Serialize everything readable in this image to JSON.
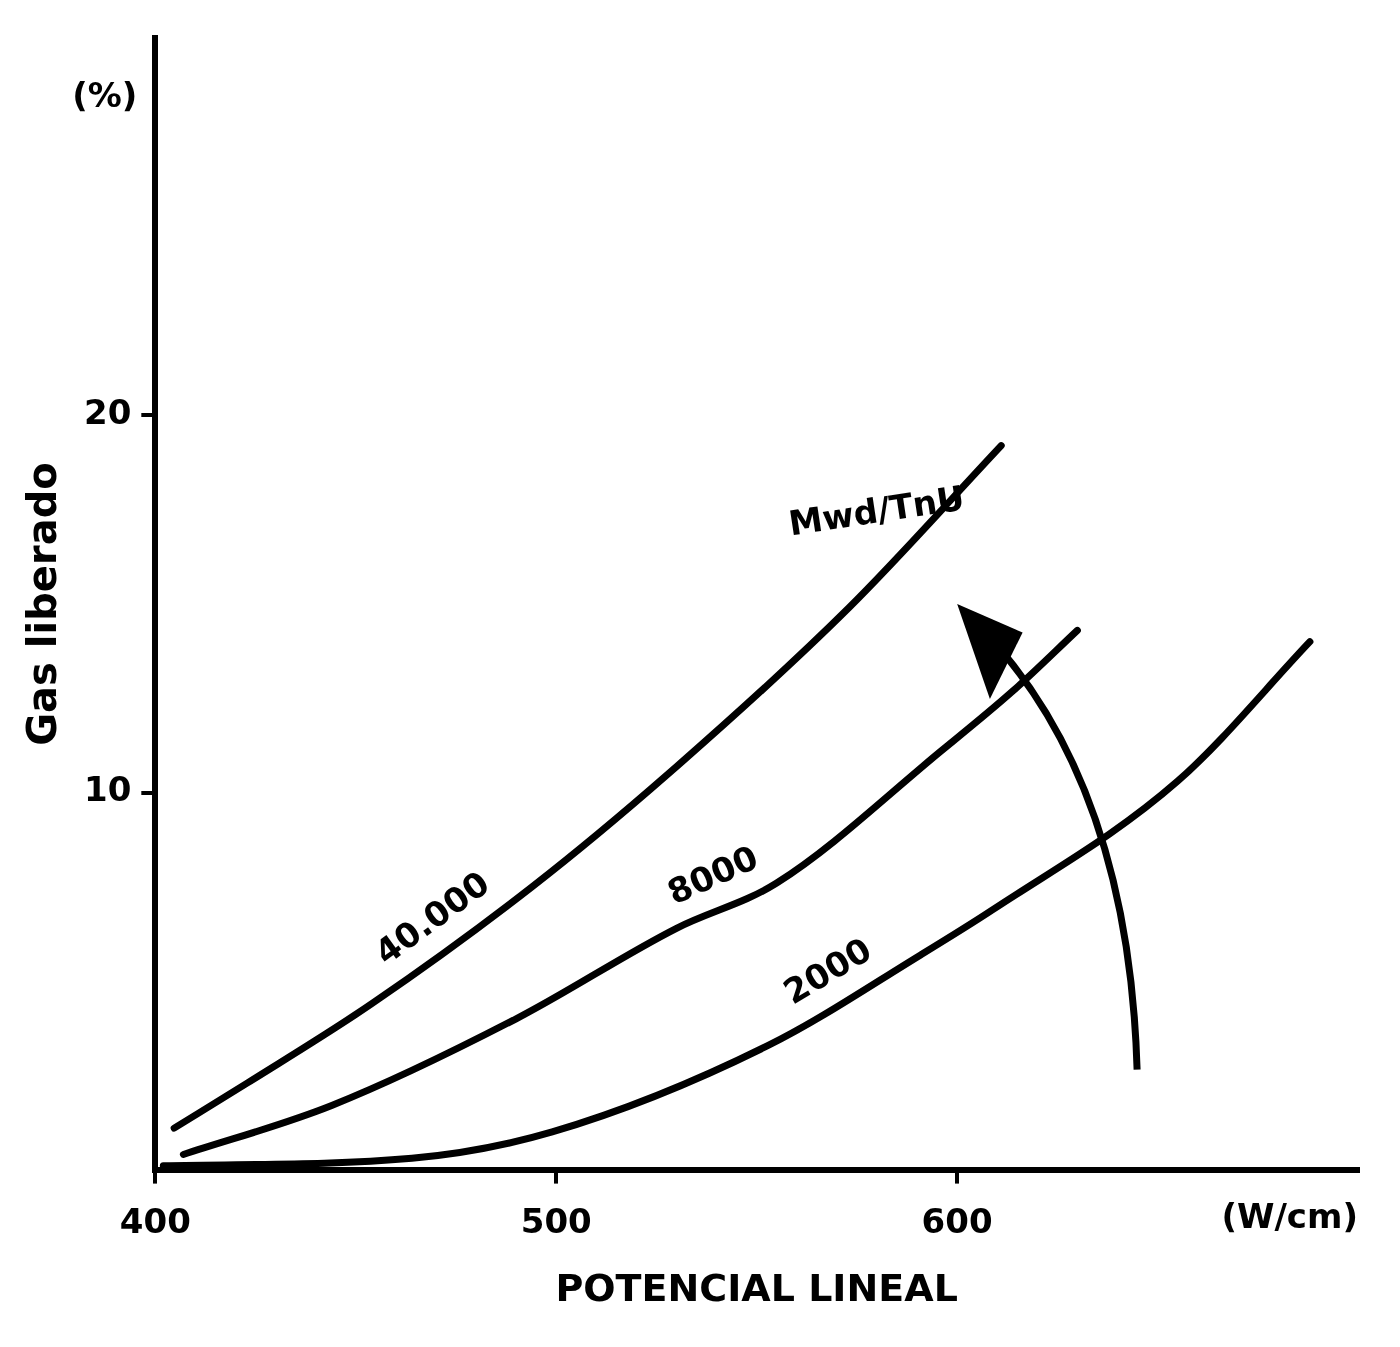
{
  "chart_data": {
    "type": "line",
    "xlabel": "POTENCIAL LINEAL",
    "ylabel": "Gas liberado",
    "annotations": [
      "(%)",
      "(W/cm)",
      "Mwd/TnU"
    ],
    "xlim": [
      400,
      700
    ],
    "ylim": [
      0,
      30
    ],
    "xticks": [
      400,
      500,
      600
    ],
    "yticks": [
      10,
      20
    ],
    "grid": false,
    "legend": false,
    "marker": "none",
    "line_style": "solid",
    "series": [
      {
        "name": "40.000",
        "color": "#000000",
        "x": [
          404.7,
          423,
          454,
          494,
          528,
          573,
          611
        ],
        "values": [
          1.1,
          2.3,
          4.4,
          7.5,
          10.5,
          14.9,
          19.2
        ]
      },
      {
        "name": "8000",
        "color": "#000000",
        "x": [
          407,
          444,
          490,
          530,
          555,
          596,
          614,
          630
        ],
        "values": [
          0.4,
          1.7,
          4.0,
          6.4,
          7.6,
          11.1,
          12.7,
          14.3
        ]
      },
      {
        "name": "2000",
        "color": "#000000",
        "x": [
          402,
          464,
          499,
          553,
          591,
          609,
          655,
          688
        ],
        "values": [
          0.1,
          0.3,
          1.0,
          3.3,
          5.7,
          6.9,
          10.3,
          14.0
        ]
      }
    ]
  }
}
